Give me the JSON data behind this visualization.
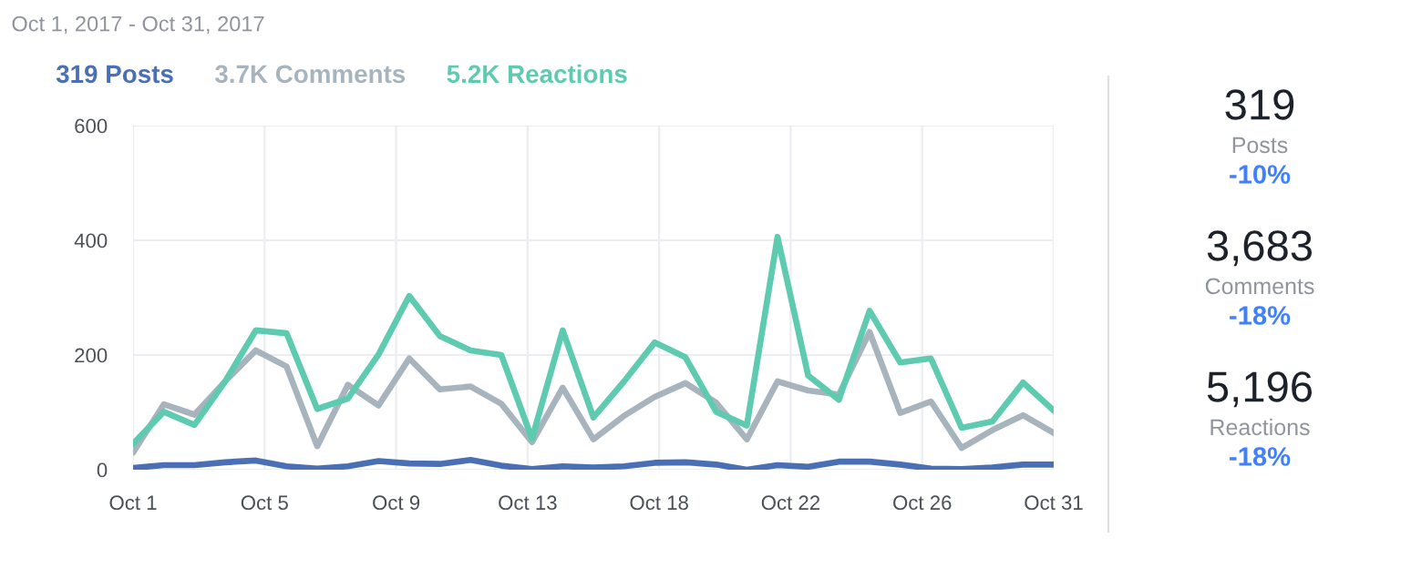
{
  "chart_data": [
    {
      "type": "line",
      "title": "Oct 1, 2017 - Oct 31, 2017",
      "x": [
        "2017-10-01",
        "2017-10-02",
        "2017-10-03",
        "2017-10-04",
        "2017-10-05",
        "2017-10-06",
        "2017-10-07",
        "2017-10-08",
        "2017-10-09",
        "2017-10-10",
        "2017-10-11",
        "2017-10-12",
        "2017-10-13",
        "2017-10-14",
        "2017-10-15",
        "2017-10-16",
        "2017-10-17",
        "2017-10-18",
        "2017-10-19",
        "2017-10-20",
        "2017-10-21",
        "2017-10-22",
        "2017-10-23",
        "2017-10-24",
        "2017-10-25",
        "2017-10-26",
        "2017-10-27",
        "2017-10-28",
        "2017-10-29",
        "2017-10-30",
        "2017-10-31"
      ],
      "series": [
        {
          "name": "319 Posts",
          "color": "#4a6fb5",
          "values": [
            3,
            8,
            8,
            13,
            16,
            6,
            2,
            6,
            15,
            11,
            10,
            17,
            7,
            1,
            6,
            4,
            6,
            12,
            13,
            9,
            0,
            8,
            5,
            14,
            14,
            9,
            2,
            1,
            4,
            9,
            9
          ]
        },
        {
          "name": "3.7K Comments",
          "color": "#a8b4bd",
          "values": [
            30,
            114,
            96,
            154,
            208,
            180,
            41,
            148,
            112,
            194,
            140,
            145,
            115,
            48,
            143,
            53,
            94,
            127,
            151,
            117,
            53,
            154,
            138,
            131,
            240,
            99,
            119,
            38,
            69,
            95,
            64
          ]
        },
        {
          "name": "5.2K Reactions",
          "color": "#5ecbb0",
          "values": [
            45,
            101,
            78,
            154,
            243,
            238,
            106,
            124,
            201,
            303,
            233,
            208,
            200,
            54,
            243,
            91,
            154,
            222,
            196,
            101,
            77,
            406,
            164,
            122,
            277,
            187,
            194,
            73,
            84,
            152,
            103
          ]
        }
      ],
      "xlim": [
        "2017-10-01",
        "2017-10-31"
      ],
      "xticks": [
        {
          "value": "2017-10-01",
          "label": "Oct 1"
        },
        {
          "value": "2017-10-05T06:51",
          "label": "Oct 5"
        },
        {
          "value": "2017-10-09T13:43",
          "label": "Oct 9"
        },
        {
          "value": "2017-10-13T20:34",
          "label": "Oct 13"
        },
        {
          "value": "2017-10-18T03:26",
          "label": "Oct 18"
        },
        {
          "value": "2017-10-22T10:17",
          "label": "Oct 22"
        },
        {
          "value": "2017-10-26T17:09",
          "label": "Oct 26"
        },
        {
          "value": "2017-10-31",
          "label": "Oct 31"
        }
      ],
      "ylim": [
        0,
        600
      ],
      "yticks": [
        0,
        200,
        400,
        600
      ],
      "grid": true,
      "legend": "top left",
      "marker": "none",
      "line_style": "solid"
    },
    {
      "type": "other",
      "annotations": [
        "319",
        "Posts",
        "-10%",
        "3,683",
        "Comments",
        "-18%",
        "5,196",
        "Reactions",
        "-18%"
      ]
    }
  ]
}
